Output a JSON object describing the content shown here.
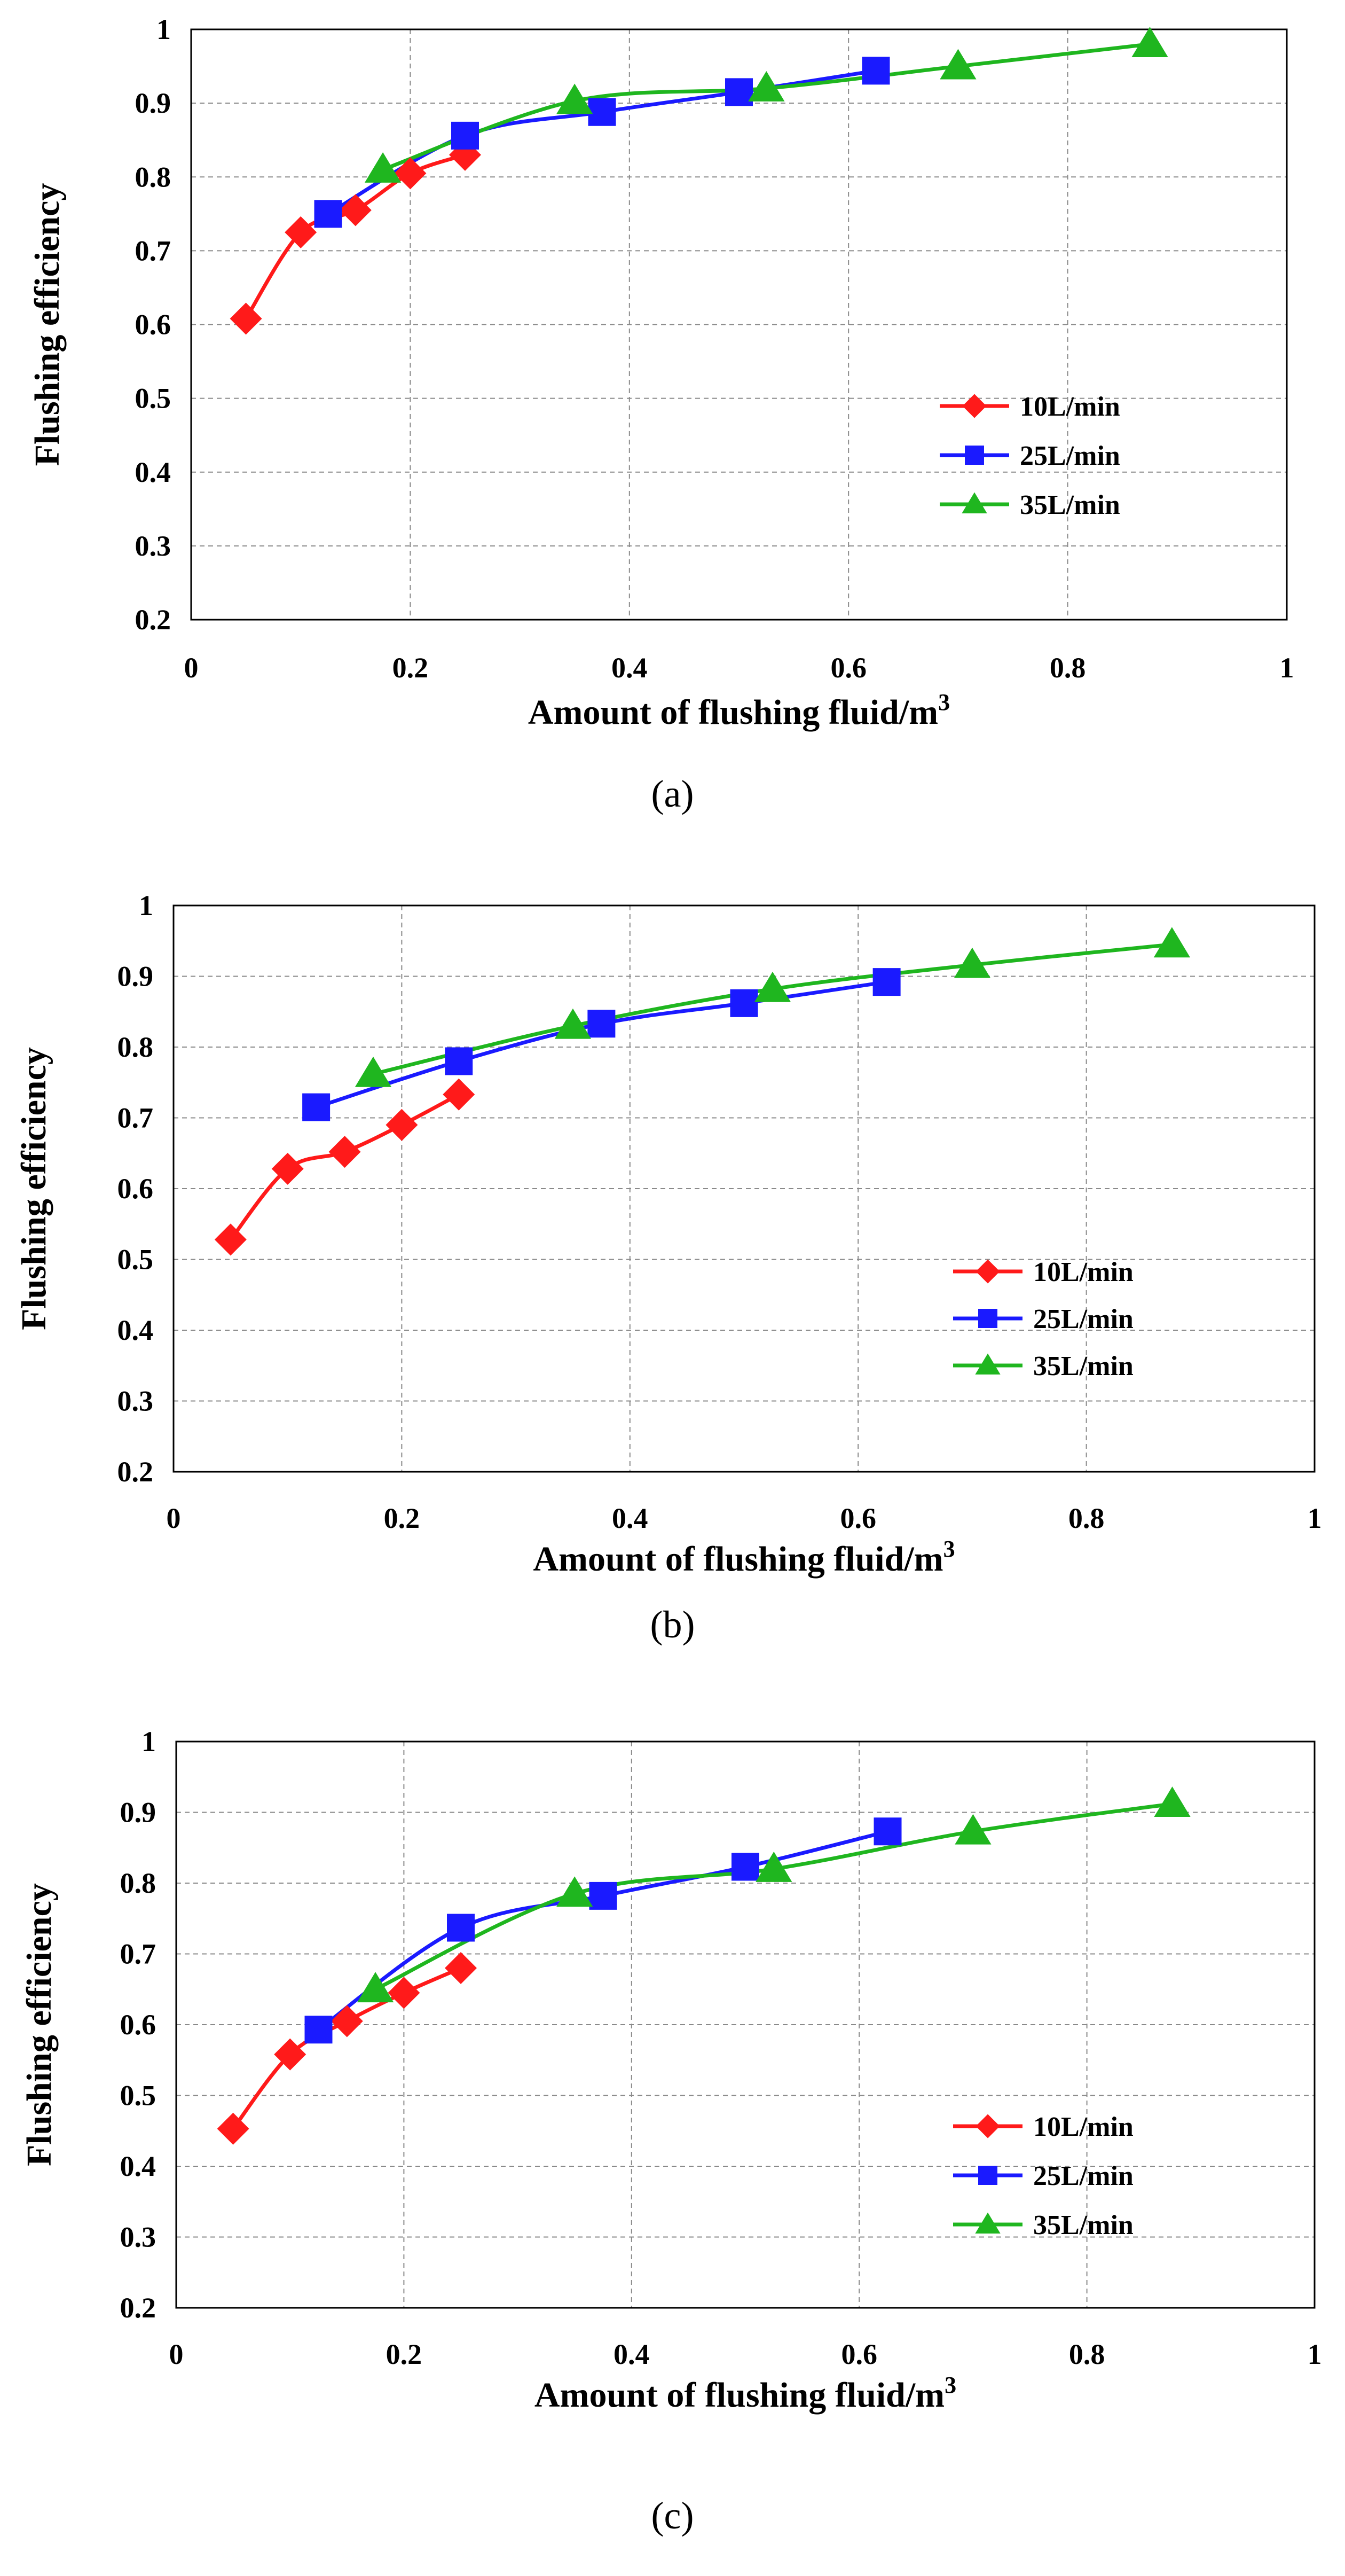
{
  "figure": {
    "captions": [
      "(a)",
      "(b)",
      "(c)"
    ]
  },
  "chart_data": [
    {
      "type": "line",
      "panel": "(a)",
      "xlabel": "Amount of flushing fluid/m",
      "xlabel_sup": "3",
      "ylabel": "Flushing efficiency",
      "xlim": [
        0,
        1
      ],
      "ylim": [
        0.2,
        1
      ],
      "xticks": [
        "0",
        "0.2",
        "0.4",
        "0.6",
        "0.8",
        "1"
      ],
      "yticks": [
        "0.2",
        "0.3",
        "0.4",
        "0.5",
        "0.6",
        "0.7",
        "0.8",
        "0.9",
        "1"
      ],
      "grid": true,
      "legend_position": "right-middle",
      "series": [
        {
          "name": "10L/min",
          "color": "#ff1a1a",
          "marker": "diamond",
          "x": [
            0.05,
            0.1,
            0.15,
            0.2,
            0.25
          ],
          "y": [
            0.608,
            0.725,
            0.755,
            0.805,
            0.83
          ]
        },
        {
          "name": "25L/min",
          "color": "#1a1aff",
          "marker": "square",
          "x": [
            0.125,
            0.25,
            0.375,
            0.5,
            0.625
          ],
          "y": [
            0.75,
            0.856,
            0.888,
            0.915,
            0.944
          ]
        },
        {
          "name": "35L/min",
          "color": "#1fb61f",
          "marker": "triangle",
          "x": [
            0.175,
            0.35,
            0.525,
            0.7,
            0.875
          ],
          "y": [
            0.81,
            0.903,
            0.92,
            0.95,
            0.98
          ]
        }
      ]
    },
    {
      "type": "line",
      "panel": "(b)",
      "xlabel": "Amount of flushing fluid/m",
      "xlabel_sup": "3",
      "ylabel": "Flushing efficiency",
      "xlim": [
        0,
        1
      ],
      "ylim": [
        0.2,
        1
      ],
      "xticks": [
        "0",
        "0.2",
        "0.4",
        "0.6",
        "0.8",
        "1"
      ],
      "yticks": [
        "0.2",
        "0.3",
        "0.4",
        "0.5",
        "0.6",
        "0.7",
        "0.8",
        "0.9",
        "1"
      ],
      "grid": true,
      "legend_position": "right-middle",
      "series": [
        {
          "name": "10L/min",
          "color": "#ff1a1a",
          "marker": "diamond",
          "x": [
            0.05,
            0.1,
            0.15,
            0.2,
            0.25
          ],
          "y": [
            0.528,
            0.628,
            0.652,
            0.69,
            0.733
          ]
        },
        {
          "name": "25L/min",
          "color": "#1a1aff",
          "marker": "square",
          "x": [
            0.125,
            0.25,
            0.375,
            0.5,
            0.625
          ],
          "y": [
            0.715,
            0.78,
            0.833,
            0.862,
            0.892
          ]
        },
        {
          "name": "35L/min",
          "color": "#1fb61f",
          "marker": "triangle",
          "x": [
            0.175,
            0.35,
            0.525,
            0.7,
            0.875
          ],
          "y": [
            0.762,
            0.83,
            0.882,
            0.916,
            0.945
          ]
        }
      ]
    },
    {
      "type": "line",
      "panel": "(c)",
      "xlabel": "Amount of flushing fluid/m",
      "xlabel_sup": "3",
      "ylabel": "Flushing efficiency",
      "xlim": [
        0,
        1
      ],
      "ylim": [
        0.2,
        1
      ],
      "xticks": [
        "0",
        "0.2",
        "0.4",
        "0.6",
        "0.8",
        "1"
      ],
      "yticks": [
        "0.2",
        "0.3",
        "0.4",
        "0.5",
        "0.6",
        "0.7",
        "0.8",
        "0.9",
        "1"
      ],
      "grid": true,
      "legend_position": "right-lower",
      "series": [
        {
          "name": "10L/min",
          "color": "#ff1a1a",
          "marker": "diamond",
          "x": [
            0.05,
            0.1,
            0.15,
            0.2,
            0.25
          ],
          "y": [
            0.453,
            0.558,
            0.605,
            0.645,
            0.68
          ]
        },
        {
          "name": "25L/min",
          "color": "#1a1aff",
          "marker": "square",
          "x": [
            0.125,
            0.25,
            0.375,
            0.5,
            0.625
          ],
          "y": [
            0.593,
            0.737,
            0.782,
            0.823,
            0.873
          ]
        },
        {
          "name": "35L/min",
          "color": "#1fb61f",
          "marker": "triangle",
          "x": [
            0.175,
            0.35,
            0.525,
            0.7,
            0.875
          ],
          "y": [
            0.65,
            0.785,
            0.82,
            0.873,
            0.912
          ]
        }
      ]
    }
  ]
}
